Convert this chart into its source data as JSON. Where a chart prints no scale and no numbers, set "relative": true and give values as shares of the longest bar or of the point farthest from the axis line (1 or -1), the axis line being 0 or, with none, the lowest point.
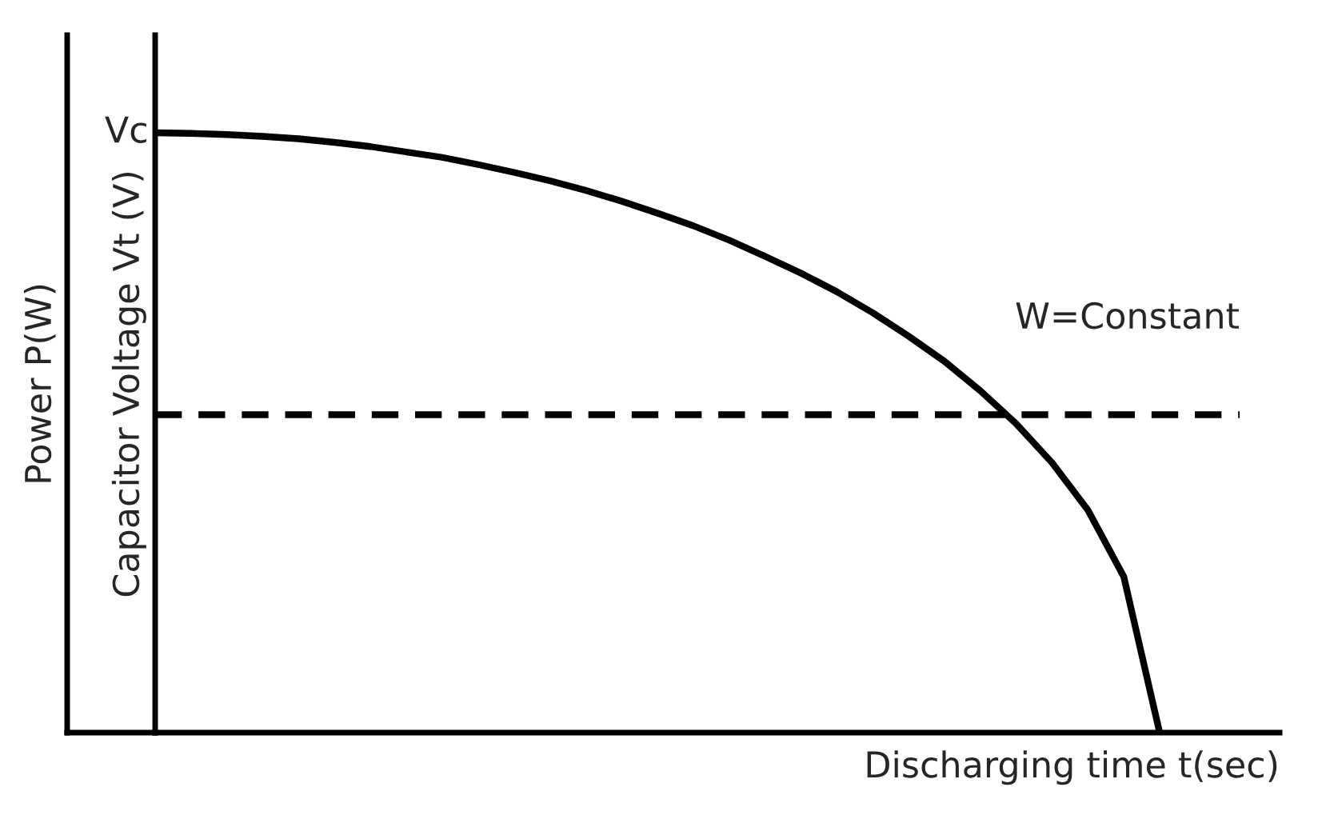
{
  "chart_data": {
    "type": "line",
    "relative": true,
    "xlabel": "Discharging time t(sec)",
    "ylabel": "Capacitor Voltage Vt (V)",
    "y2label": "Power P(W)",
    "categories": [
      null,
      null,
      null,
      null,
      null,
      null,
      null,
      null,
      null,
      null,
      null,
      null,
      null,
      null,
      null,
      null,
      null,
      null,
      null,
      null,
      null,
      null,
      null,
      null,
      null,
      null,
      null,
      null,
      null
    ],
    "series": [
      {
        "color": "#000000",
        "values": [
          1,
          0.999,
          0.997,
          0.994,
          0.99,
          0.984,
          0.977,
          0.968,
          0.959,
          0.947,
          0.934,
          0.92,
          0.904,
          0.886,
          0.866,
          0.845,
          0.821,
          0.794,
          0.766,
          0.735,
          0.7,
          0.661,
          0.619,
          0.57,
          0.515,
          0.45,
          0.371,
          0.26,
          0
        ]
      }
    ],
    "ref_lines": [
      {
        "axis": "y",
        "value": 0.53,
        "label": "W=Constant",
        "color": "#000000",
        "line_style": "dashed"
      }
    ],
    "annotations": [
      "Vc"
    ],
    "legend": false,
    "marker": "none",
    "line_style": "solid"
  }
}
